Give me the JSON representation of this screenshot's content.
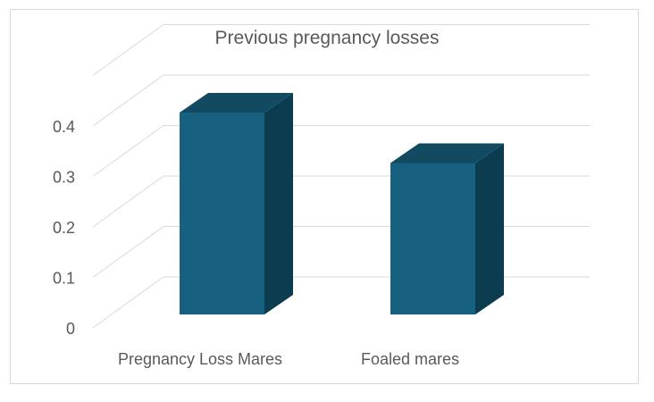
{
  "chart_data": {
    "type": "bar",
    "style": "3d-column",
    "title": "Previous pregnancy losses",
    "xlabel": "",
    "ylabel": "",
    "categories": [
      "Pregnancy Loss Mares",
      "Foaled mares"
    ],
    "values": [
      0.4,
      0.3
    ],
    "ylim": [
      0,
      0.4
    ],
    "yticks": [
      "0",
      "0.1",
      "0.2",
      "0.3",
      "0.4"
    ],
    "grid": true,
    "legend": "none",
    "colors": {
      "front": "#17607f",
      "side": "#0c3c4f",
      "top": "#124a62",
      "grid": "#d9d9d9",
      "text": "#595959"
    }
  }
}
